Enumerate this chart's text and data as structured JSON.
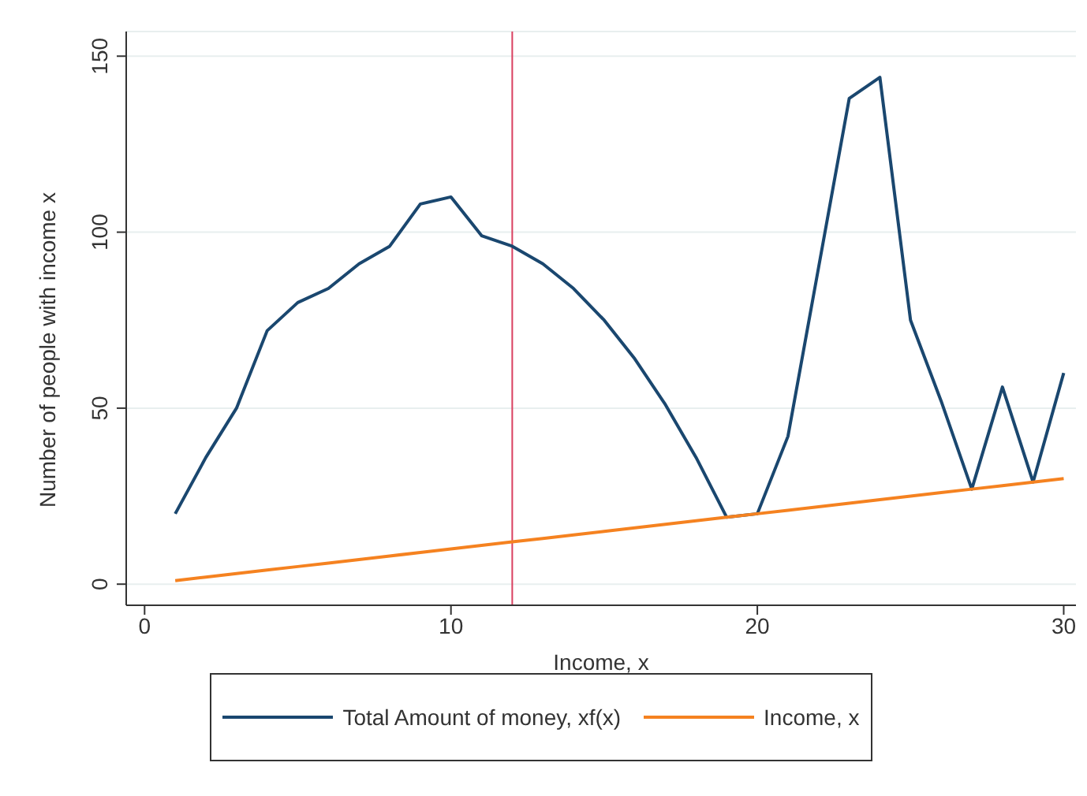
{
  "chart_data": {
    "type": "line",
    "xlabel": "Income, x",
    "ylabel": "Number of people with income x",
    "x": [
      1,
      2,
      3,
      4,
      5,
      6,
      7,
      8,
      9,
      10,
      11,
      12,
      13,
      14,
      15,
      16,
      17,
      18,
      19,
      20,
      21,
      22,
      23,
      24,
      25,
      26,
      27,
      28,
      29,
      30
    ],
    "series": [
      {
        "name": "Total Amount of money, xf(x)",
        "color": "#1a476f",
        "values": [
          20,
          36,
          50,
          72,
          80,
          84,
          91,
          96,
          108,
          110,
          99,
          96,
          91,
          84,
          75,
          64,
          51,
          36,
          19,
          20,
          42,
          90,
          138,
          144,
          75,
          52,
          27,
          56,
          29,
          60
        ]
      },
      {
        "name": "Income, x",
        "color": "#f58220",
        "values": [
          1,
          2,
          3,
          4,
          5,
          6,
          7,
          8,
          9,
          10,
          11,
          12,
          13,
          14,
          15,
          16,
          17,
          18,
          19,
          20,
          21,
          22,
          23,
          24,
          25,
          26,
          27,
          28,
          29,
          30
        ]
      }
    ],
    "xlim": [
      -0.6,
      30.4
    ],
    "ylim": [
      -6,
      157
    ],
    "xticks": [
      0,
      10,
      20,
      30
    ],
    "yticks": [
      0,
      50,
      100,
      150
    ],
    "ref_lines": [
      {
        "axis": "x",
        "value": 12,
        "color": "#d94060"
      }
    ],
    "grid": "y",
    "legend": "bottom",
    "marker": "none",
    "line_style": "solid"
  }
}
